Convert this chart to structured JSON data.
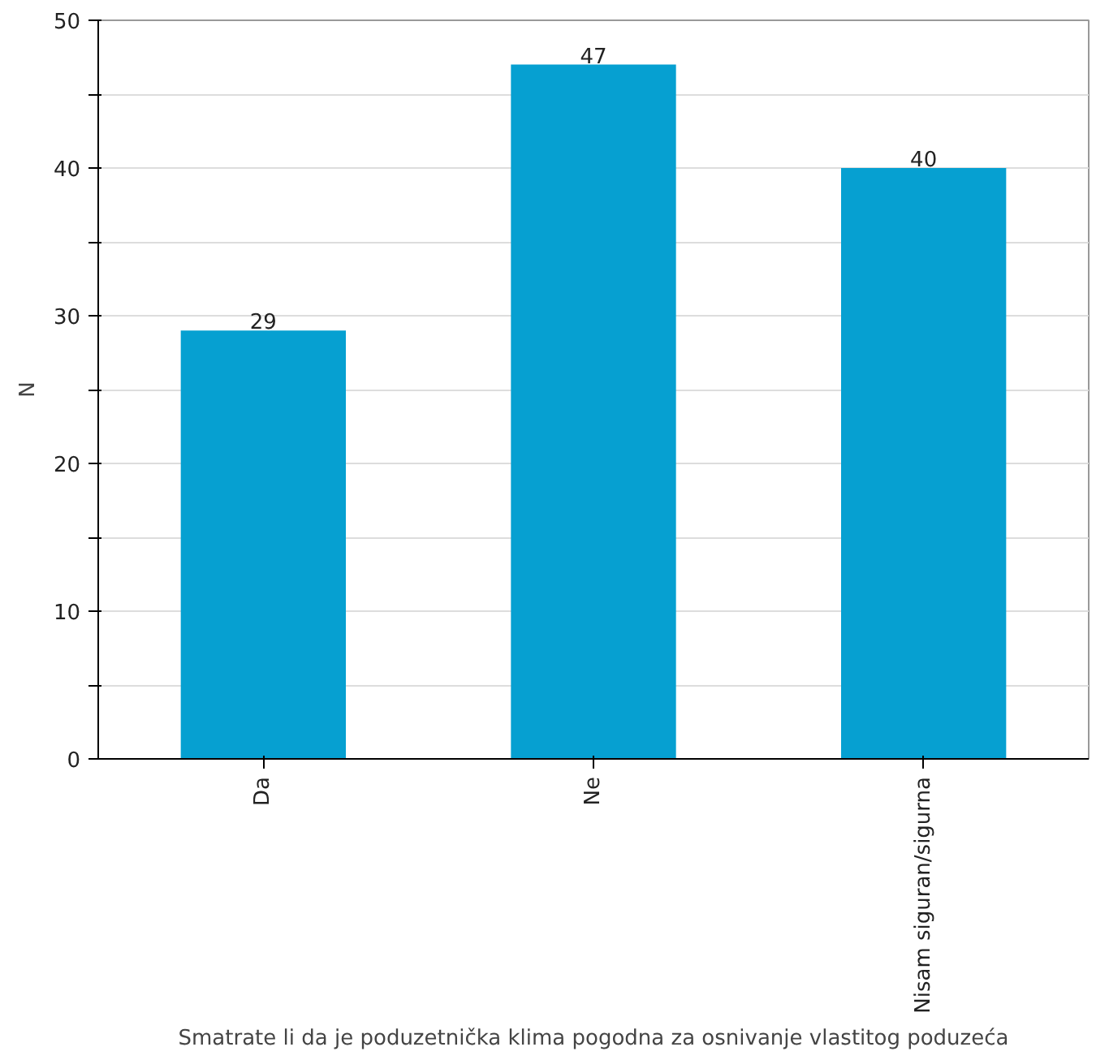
{
  "chart_data": {
    "type": "bar",
    "xlabel": "Smatrate li da je poduzetnička klima pogodna za osnivanje vlastitog poduzeća",
    "ylabel": "N",
    "categories": [
      "Da",
      "Ne",
      "Nisam siguran/sigurna"
    ],
    "values": [
      29,
      47,
      40
    ],
    "color": "#06a0d1",
    "data_labels": true,
    "ylim": [
      0,
      50
    ],
    "yticks": [
      0,
      {
        "value": 5,
        "label": null
      },
      10,
      {
        "value": 15,
        "label": null
      },
      20,
      {
        "value": 25,
        "label": null
      },
      30,
      {
        "value": 35,
        "label": null
      },
      40,
      {
        "value": 45,
        "label": null
      },
      50
    ],
    "grid": "y"
  }
}
